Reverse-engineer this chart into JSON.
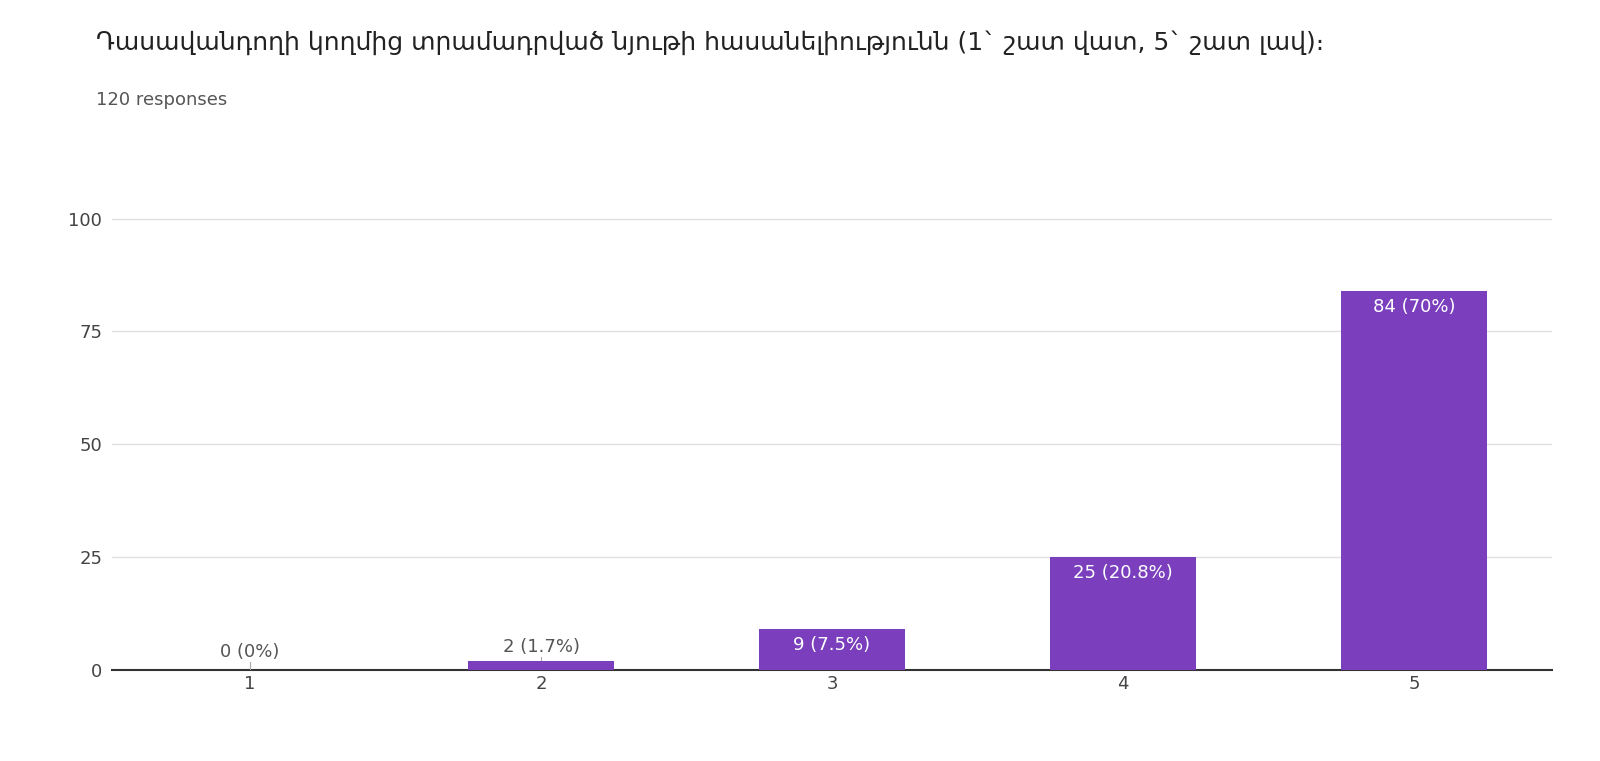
{
  "title": "Դասավանդողի կողմից տրամադրված նյութի հասանելիությունն (1` շատ վատ, 5` շատ լավ)։",
  "subtitle": "120 responses",
  "categories": [
    "1",
    "2",
    "3",
    "4",
    "5"
  ],
  "values": [
    0,
    2,
    9,
    25,
    84
  ],
  "labels": [
    "0 (0%)",
    "2 (1.7%)",
    "9 (7.5%)",
    "25 (20.8%)",
    "84 (70%)"
  ],
  "bar_color": "#7B3FBE",
  "label_color_dark": "#555555",
  "label_color_white": "#ffffff",
  "ylim": [
    0,
    108
  ],
  "yticks": [
    0,
    25,
    50,
    75,
    100
  ],
  "background_color": "#ffffff",
  "grid_color": "#e0e0e0",
  "title_fontsize": 18,
  "subtitle_fontsize": 13,
  "tick_fontsize": 13,
  "label_fontsize": 13
}
